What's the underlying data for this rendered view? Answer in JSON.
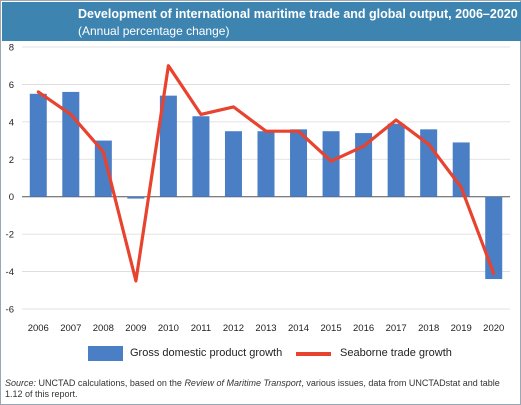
{
  "title": "Development of international maritime trade and global output, 2006–2020",
  "subtitle": "(Annual percentage change)",
  "colors": {
    "header_bg": "#3e84b0",
    "bar": "#4a7ec5",
    "line": "#e8432f",
    "grid": "#d9d9d9"
  },
  "chart_data": {
    "type": "bar",
    "title": "Development of international maritime trade and global output, 2006–2020",
    "subtitle": "(Annual percentage change)",
    "categories": [
      "2006",
      "2007",
      "2008",
      "2009",
      "2010",
      "2011",
      "2012",
      "2013",
      "2014",
      "2015",
      "2016",
      "2017",
      "2018",
      "2019",
      "2020"
    ],
    "series": [
      {
        "name": "Gross domestic product growth",
        "type": "bar",
        "values": [
          5.5,
          5.6,
          3.0,
          -0.1,
          5.4,
          4.3,
          3.5,
          3.5,
          3.6,
          3.5,
          3.4,
          3.9,
          3.6,
          2.9,
          -4.4
        ]
      },
      {
        "name": "Seaborne trade growth",
        "type": "line",
        "values": [
          5.6,
          4.4,
          2.4,
          -4.5,
          7.0,
          4.4,
          4.8,
          3.5,
          3.5,
          1.9,
          2.7,
          4.1,
          2.8,
          0.5,
          -4.1
        ]
      }
    ],
    "ylim": [
      -6,
      8
    ],
    "yticks": [
      -6,
      -4,
      -2,
      0,
      2,
      4,
      6,
      8
    ],
    "grid": true,
    "legend": "bottom"
  },
  "legend": {
    "gdp_label": "Gross domestic product growth",
    "trade_label": "Seaborne trade growth"
  },
  "source": {
    "label": "Source:",
    "text_before": " UNCTAD calculations, based on the ",
    "publication": "Review of Maritime Transport",
    "text_after": ", various issues, data from UNCTADstat and table 1.12 of this report."
  }
}
